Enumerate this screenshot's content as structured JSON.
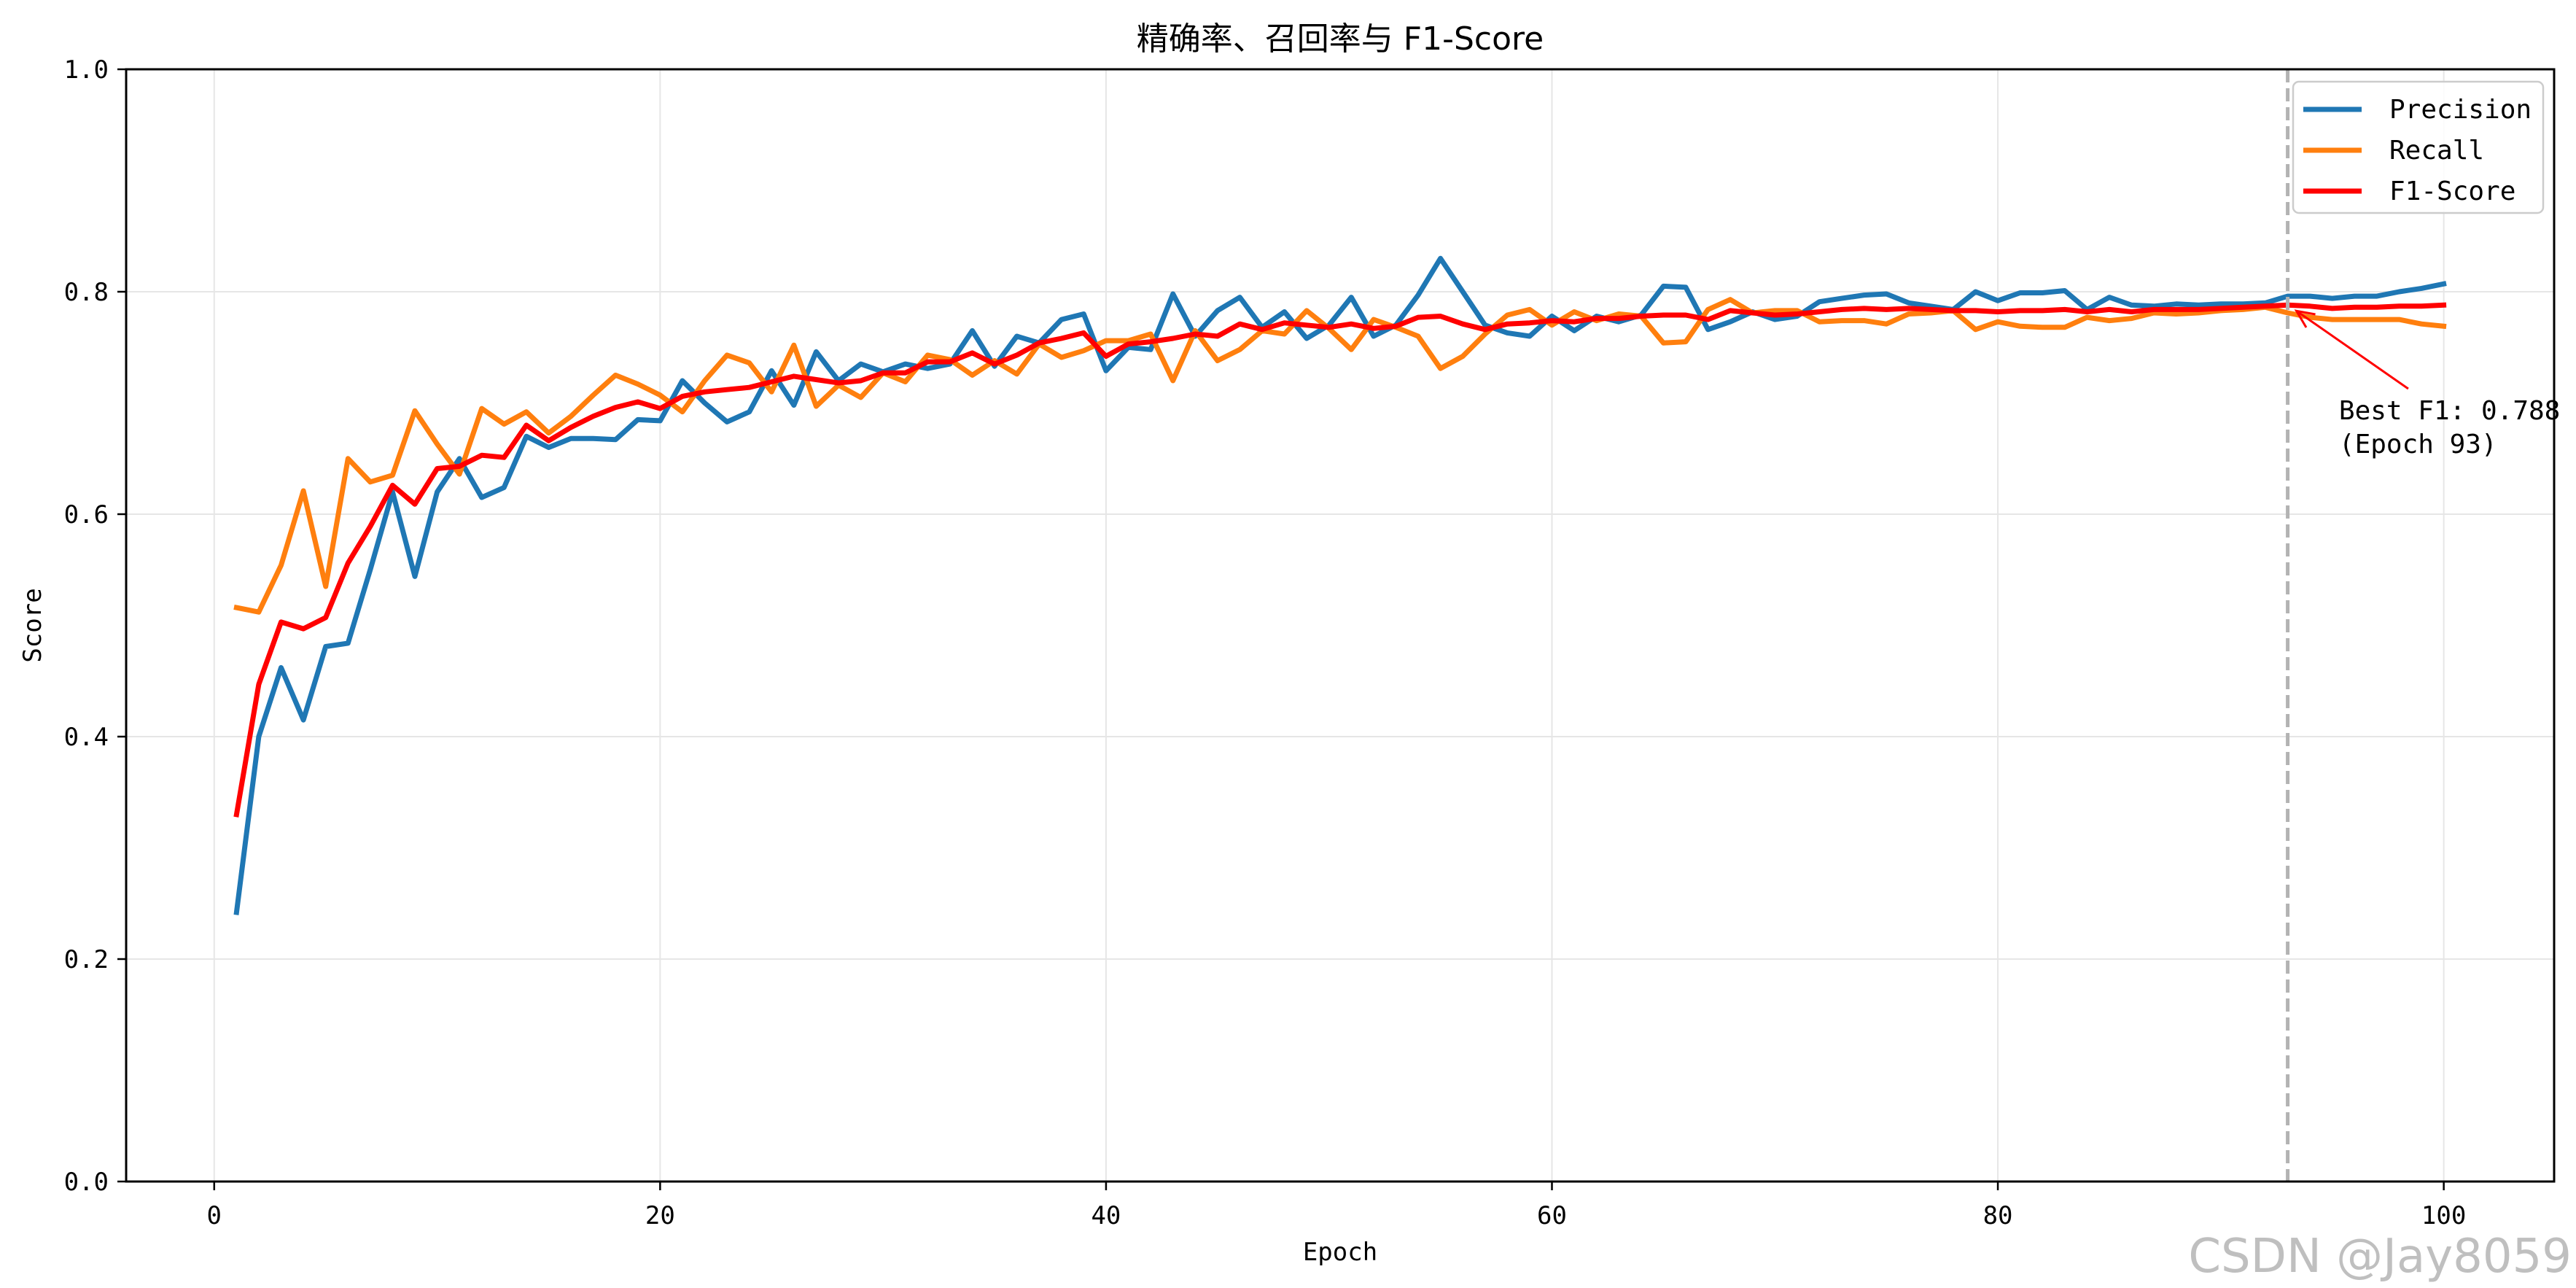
{
  "chart_data": {
    "type": "line",
    "title": "精确率、召回率与 F1-Score",
    "xlabel": "Epoch",
    "ylabel": "Score",
    "xlim": [
      -3.95,
      104.95
    ],
    "ylim": [
      0.0,
      1.0
    ],
    "xticks": [
      0,
      20,
      40,
      60,
      80,
      100
    ],
    "yticks": [
      0.0,
      0.2,
      0.4,
      0.6,
      0.8,
      1.0
    ],
    "grid": true,
    "legend_position": "top-right",
    "x": [
      1,
      2,
      3,
      4,
      5,
      6,
      7,
      8,
      9,
      10,
      11,
      12,
      13,
      14,
      15,
      16,
      17,
      18,
      19,
      20,
      21,
      22,
      23,
      24,
      25,
      26,
      27,
      28,
      29,
      30,
      31,
      32,
      33,
      34,
      35,
      36,
      37,
      38,
      39,
      40,
      41,
      42,
      43,
      44,
      45,
      46,
      47,
      48,
      49,
      50,
      51,
      52,
      53,
      54,
      55,
      56,
      57,
      58,
      59,
      60,
      61,
      62,
      63,
      64,
      65,
      66,
      67,
      68,
      69,
      70,
      71,
      72,
      73,
      74,
      75,
      76,
      77,
      78,
      79,
      80,
      81,
      82,
      83,
      84,
      85,
      86,
      87,
      88,
      89,
      90,
      91,
      92,
      93,
      94,
      95,
      96,
      97,
      98,
      99,
      100
    ],
    "series": [
      {
        "name": "Precision",
        "color": "#1f77b4",
        "values": [
          0.242,
          0.4,
          0.462,
          0.415,
          0.481,
          0.484,
          0.55,
          0.62,
          0.544,
          0.62,
          0.65,
          0.615,
          0.624,
          0.67,
          0.66,
          0.668,
          0.668,
          0.667,
          0.685,
          0.684,
          0.72,
          0.7,
          0.683,
          0.692,
          0.729,
          0.698,
          0.746,
          0.72,
          0.735,
          0.728,
          0.735,
          0.731,
          0.735,
          0.765,
          0.733,
          0.76,
          0.754,
          0.775,
          0.78,
          0.729,
          0.75,
          0.748,
          0.798,
          0.76,
          0.783,
          0.795,
          0.768,
          0.782,
          0.758,
          0.77,
          0.795,
          0.76,
          0.77,
          0.797,
          0.83,
          0.8,
          0.77,
          0.763,
          0.76,
          0.778,
          0.765,
          0.778,
          0.773,
          0.779,
          0.805,
          0.804,
          0.766,
          0.773,
          0.782,
          0.775,
          0.778,
          0.791,
          0.794,
          0.797,
          0.798,
          0.79,
          0.787,
          0.784,
          0.8,
          0.792,
          0.799,
          0.799,
          0.801,
          0.784,
          0.795,
          0.788,
          0.787,
          0.789,
          0.788,
          0.789,
          0.789,
          0.79,
          0.796,
          0.796,
          0.794,
          0.796,
          0.796,
          0.8,
          0.803,
          0.807
        ]
      },
      {
        "name": "Recall",
        "color": "#ff7f0e",
        "values": [
          0.516,
          0.512,
          0.554,
          0.621,
          0.535,
          0.65,
          0.629,
          0.635,
          0.693,
          0.663,
          0.636,
          0.695,
          0.681,
          0.692,
          0.673,
          0.688,
          0.707,
          0.725,
          0.717,
          0.707,
          0.692,
          0.72,
          0.743,
          0.736,
          0.71,
          0.752,
          0.697,
          0.716,
          0.705,
          0.727,
          0.719,
          0.743,
          0.739,
          0.725,
          0.738,
          0.726,
          0.753,
          0.741,
          0.747,
          0.756,
          0.756,
          0.762,
          0.72,
          0.765,
          0.738,
          0.748,
          0.765,
          0.762,
          0.783,
          0.767,
          0.748,
          0.775,
          0.768,
          0.76,
          0.731,
          0.742,
          0.762,
          0.779,
          0.784,
          0.77,
          0.782,
          0.774,
          0.78,
          0.778,
          0.754,
          0.755,
          0.784,
          0.793,
          0.781,
          0.783,
          0.783,
          0.773,
          0.774,
          0.774,
          0.771,
          0.78,
          0.781,
          0.783,
          0.766,
          0.773,
          0.769,
          0.768,
          0.768,
          0.777,
          0.774,
          0.776,
          0.781,
          0.78,
          0.781,
          0.783,
          0.784,
          0.786,
          0.781,
          0.777,
          0.775,
          0.775,
          0.775,
          0.775,
          0.771,
          0.769
        ]
      },
      {
        "name": "F1-Score",
        "color": "#ff0000",
        "values": [
          0.33,
          0.447,
          0.503,
          0.497,
          0.507,
          0.556,
          0.589,
          0.626,
          0.609,
          0.641,
          0.643,
          0.653,
          0.651,
          0.68,
          0.666,
          0.678,
          0.688,
          0.696,
          0.701,
          0.695,
          0.706,
          0.71,
          0.712,
          0.714,
          0.719,
          0.724,
          0.721,
          0.718,
          0.72,
          0.727,
          0.727,
          0.737,
          0.737,
          0.745,
          0.735,
          0.743,
          0.754,
          0.758,
          0.763,
          0.742,
          0.753,
          0.755,
          0.758,
          0.762,
          0.76,
          0.771,
          0.766,
          0.772,
          0.77,
          0.768,
          0.771,
          0.767,
          0.769,
          0.777,
          0.778,
          0.771,
          0.766,
          0.771,
          0.772,
          0.774,
          0.773,
          0.776,
          0.776,
          0.778,
          0.779,
          0.779,
          0.775,
          0.783,
          0.781,
          0.779,
          0.78,
          0.782,
          0.784,
          0.785,
          0.784,
          0.785,
          0.784,
          0.783,
          0.783,
          0.782,
          0.783,
          0.783,
          0.784,
          0.782,
          0.784,
          0.782,
          0.784,
          0.784,
          0.784,
          0.785,
          0.786,
          0.787,
          0.788,
          0.787,
          0.785,
          0.786,
          0.786,
          0.787,
          0.787,
          0.788
        ]
      }
    ],
    "best_marker": {
      "x": 93,
      "y": 0.788
    },
    "annotations": [
      {
        "line1": "Best F1: 0.788",
        "line2": "(Epoch 93)",
        "text_x": 95.3,
        "text_y": 0.68
      }
    ]
  },
  "watermark": "CSDN @Jay8059"
}
